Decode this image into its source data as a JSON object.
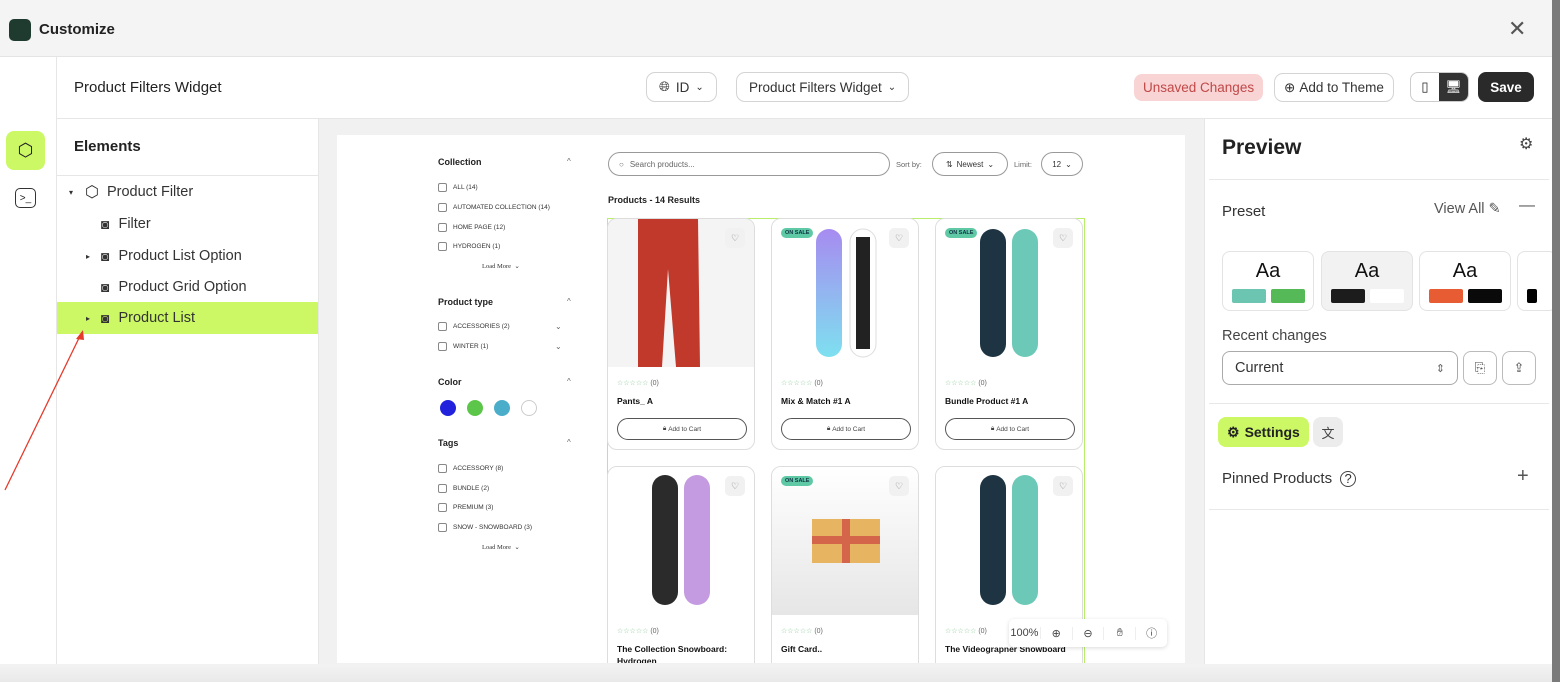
{
  "window": {
    "title": "Customize"
  },
  "toolbar": {
    "page_title": "Product Filters Widget",
    "language": "ID",
    "widget_select": "Product Filters Widget",
    "unsaved": "Unsaved Changes",
    "add_to_theme": "Add to Theme",
    "save": "Save"
  },
  "elements": {
    "heading": "Elements",
    "items": [
      {
        "label": "Product Filter"
      },
      {
        "label": "Filter"
      },
      {
        "label": "Product List Option"
      },
      {
        "label": "Product Grid Option"
      },
      {
        "label": "Product List"
      }
    ]
  },
  "store": {
    "search_placeholder": "Search products...",
    "sort_label": "Sort by:",
    "sort_value": "Newest",
    "limit_label": "Limit:",
    "limit_value": "12",
    "results": "Products - 14 Results",
    "load_more": "Load More",
    "filters": {
      "collection": {
        "title": "Collection",
        "items": [
          "ALL (14)",
          "AUTOMATED COLLECTION (14)",
          "HOME PAGE (12)",
          "HYDROGEN (1)"
        ]
      },
      "product_type": {
        "title": "Product type",
        "items": [
          "ACCESSORIES (2)",
          "WINTER (1)"
        ]
      },
      "color": {
        "title": "Color",
        "swatches": [
          "#2222dd",
          "#5cc64a",
          "#4aaecb",
          "#ffffff"
        ]
      },
      "tags": {
        "title": "Tags",
        "items": [
          "ACCESSORY (8)",
          "BUNDLE (2)",
          "PREMIUM (3)",
          "SNOW - SNOWBOARD (3)"
        ]
      }
    },
    "sale_badge": "ON SALE",
    "add_to_cart": "Add to Cart",
    "products": [
      {
        "name": "Pants_ A",
        "reviews": "(0)"
      },
      {
        "name": "Mix & Match #1 A",
        "reviews": "(0)"
      },
      {
        "name": "Bundle Product #1 A",
        "reviews": "(0)"
      },
      {
        "name": "The Collection Snowboard: Hydrogen",
        "reviews": "(0)"
      },
      {
        "name": "Gift Card..",
        "reviews": "(0)"
      },
      {
        "name": "The Videograpner Snowboard",
        "reviews": "(0)"
      }
    ]
  },
  "zoom": {
    "level": "100%"
  },
  "right_panel": {
    "title": "Preview",
    "preset_label": "Preset",
    "view_all": "View All",
    "presets": [
      {
        "label": "Aa",
        "colors": [
          "#6cc5b0",
          "#55b957"
        ]
      },
      {
        "label": "Aa",
        "colors": [
          "#1c1c1c",
          "#ffffff"
        ]
      },
      {
        "label": "Aa",
        "colors": [
          "#e85c33",
          "#0a0a0a"
        ]
      }
    ],
    "recent_changes_label": "Recent changes",
    "recent_changes_value": "Current",
    "settings_tab": "Settings",
    "pinned_products": "Pinned Products"
  },
  "accent": "#ccf866"
}
